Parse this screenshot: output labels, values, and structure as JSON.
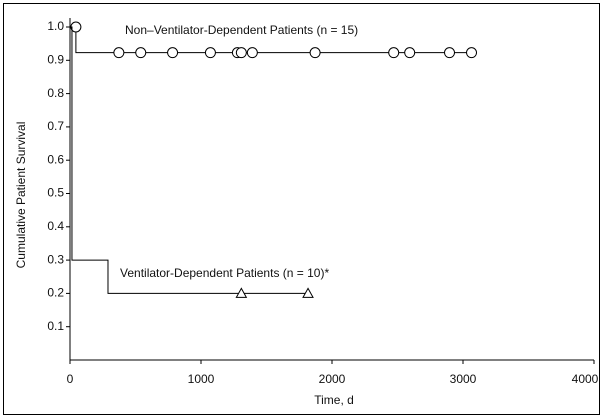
{
  "chart_data": {
    "type": "step",
    "x_label": "Time, d",
    "y_label": "Cumulative Patient Survival",
    "xlim": [
      0,
      4000
    ],
    "ylim": [
      0,
      1.0
    ],
    "xticks": [
      0,
      1000,
      2000,
      3000,
      4000
    ],
    "yticks": [
      0.1,
      0.2,
      0.3,
      0.4,
      0.5,
      0.6,
      0.7,
      0.8,
      0.9,
      {
        "value": 1.0,
        "label": "1.0"
      }
    ],
    "series": [
      {
        "name": "Non–Ventilator-Dependent Patients (n = 15)",
        "color": "#000000",
        "marker": "circle",
        "x": [
          0,
          45,
          3065
        ],
        "values": [
          1.0,
          0.923,
          0.923
        ],
        "censored_x": [
          45,
          373,
          540,
          783,
          1072,
          1278,
          1308,
          1392,
          1871,
          2471,
          2593,
          2897,
          3065
        ],
        "censored_values": [
          1.0,
          0.923,
          0.923,
          0.923,
          0.923,
          0.923,
          0.923,
          0.923,
          0.923,
          0.923,
          0.923,
          0.923,
          0.923
        ]
      },
      {
        "name": "Ventilator-Dependent Patients (n = 10)*",
        "color": "#000000",
        "marker": "triangle",
        "x": [
          0,
          15,
          290,
          1817
        ],
        "values": [
          1.0,
          0.3,
          0.2,
          0.2
        ],
        "censored_x": [
          1308,
          1817
        ],
        "censored_values": [
          0.2,
          0.2
        ]
      }
    ]
  }
}
